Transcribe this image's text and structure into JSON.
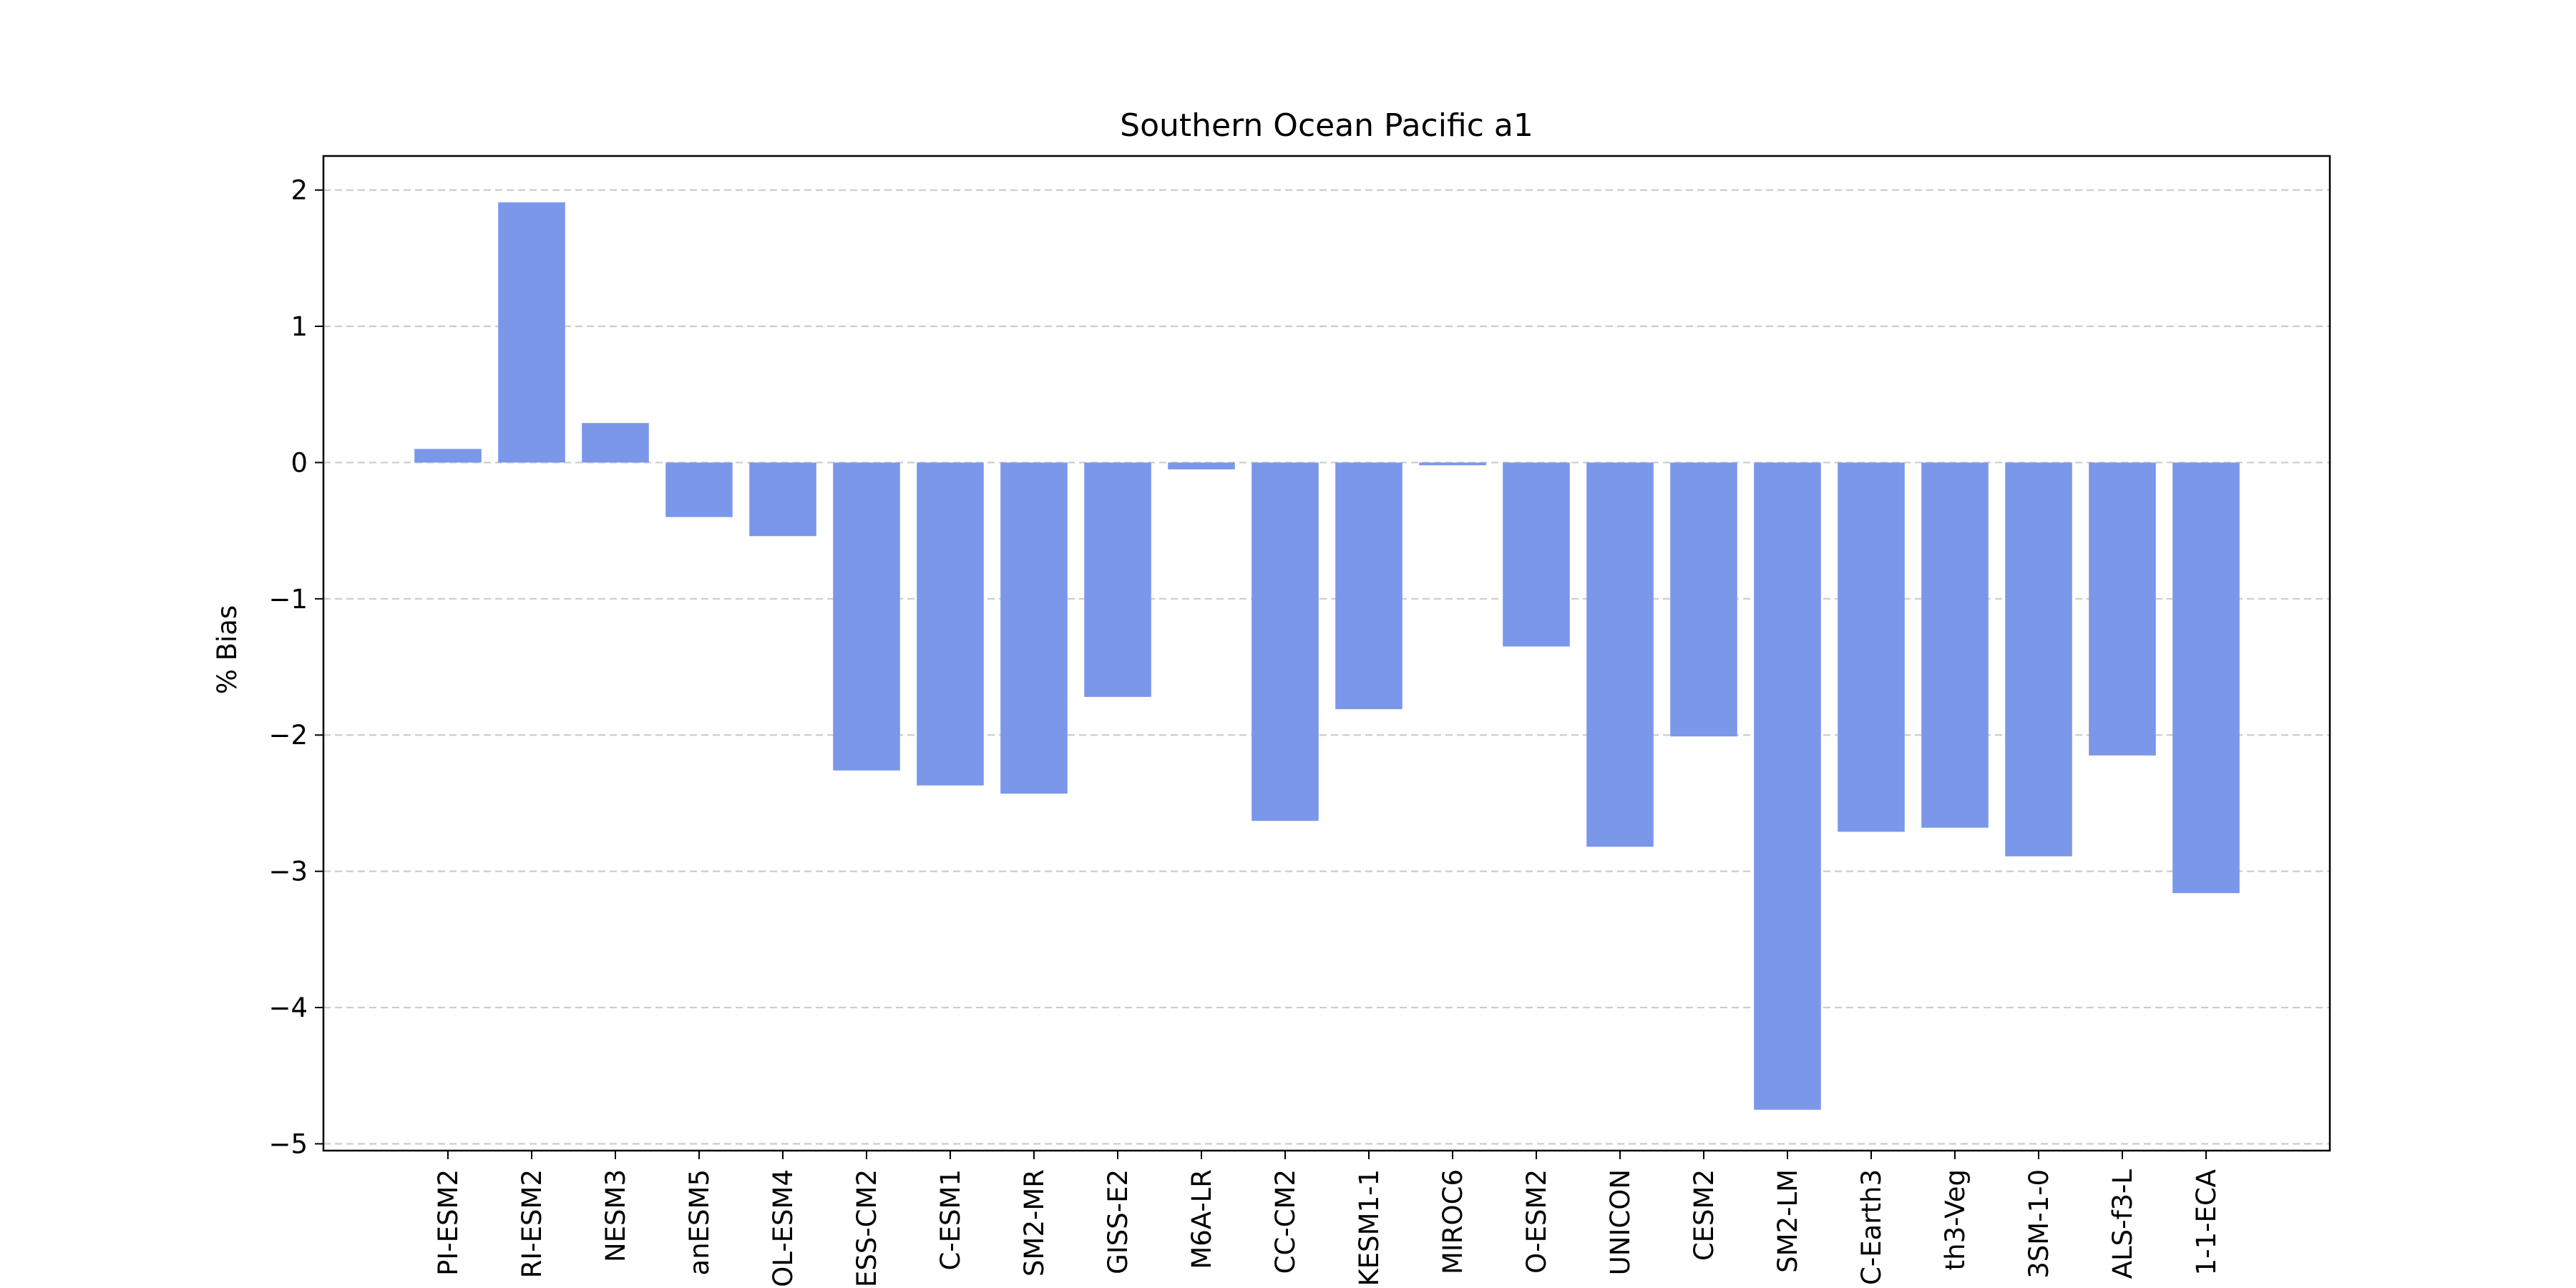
{
  "chart_data": {
    "type": "bar",
    "title": "Southern Ocean Pacific a1",
    "xlabel": "",
    "ylabel": "% Bias",
    "ylim": [
      -5.05,
      2.25
    ],
    "yticks": [
      2,
      1,
      0,
      -1,
      -2,
      -3,
      -4,
      -5
    ],
    "ytick_labels": [
      "2",
      "1",
      "0",
      "−1",
      "−2",
      "−3",
      "−4",
      "−5"
    ],
    "grid": true,
    "bar_color": "#7b97e9",
    "categories": [
      "PI-ESM2",
      "RI-ESM2",
      "NESM3",
      "anESM5",
      "OL-ESM4",
      "ESS-CM2",
      "C-ESM1",
      "SM2-MR",
      "GISS-E2",
      "M6A-LR",
      "CC-CM2",
      "KESM1-1",
      "MIROC6",
      "O-ESM2",
      "UNICON",
      "CESM2",
      "SM2-LM",
      "C-Earth3",
      "th3-Veg",
      "3SM-1-0",
      "ALS-f3-L",
      "1-1-ECA"
    ],
    "values": [
      0.1,
      1.91,
      0.29,
      -0.4,
      -0.54,
      -2.26,
      -2.37,
      -2.43,
      -1.72,
      -0.05,
      -2.63,
      -1.81,
      -0.02,
      -1.35,
      -2.82,
      -2.01,
      -4.75,
      -2.71,
      -2.68,
      -2.89,
      -2.15,
      -3.16
    ]
  }
}
